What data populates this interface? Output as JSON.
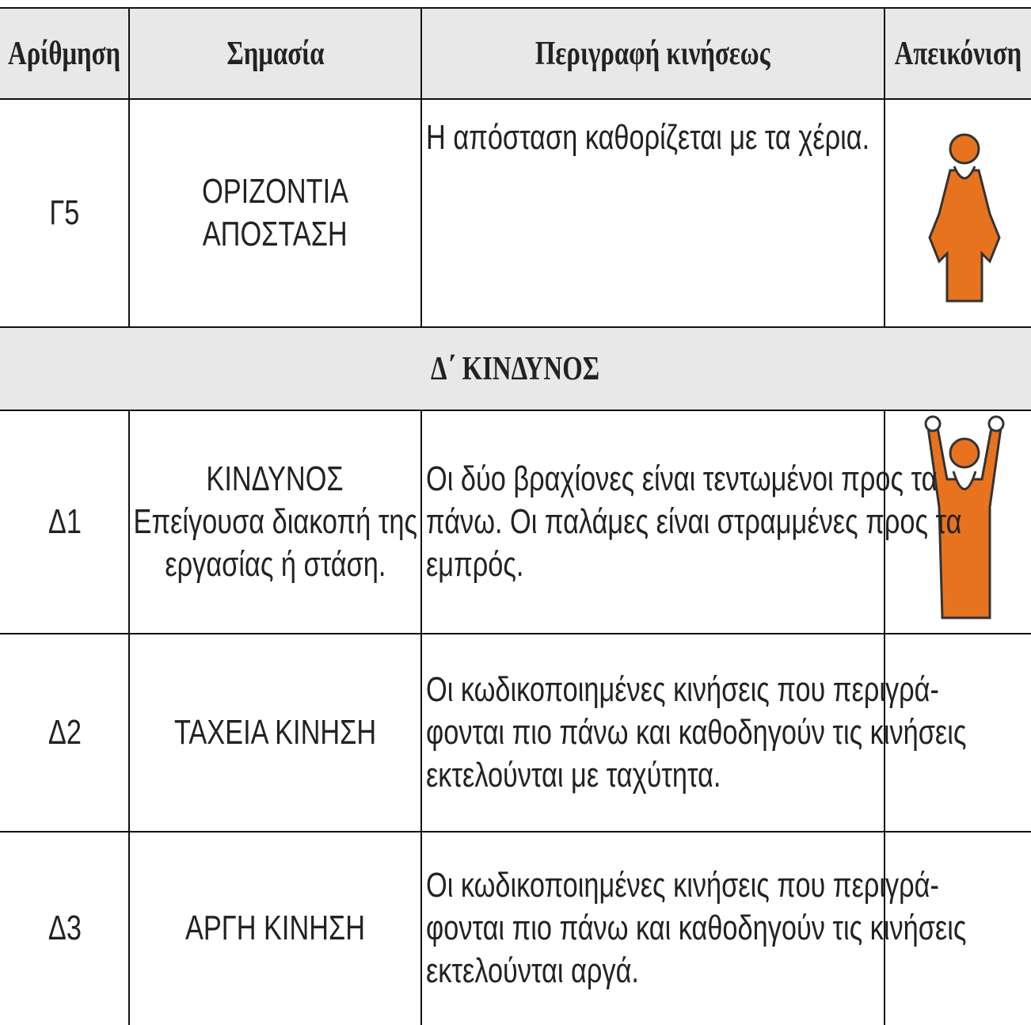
{
  "table": {
    "header": [
      "Αρίθμηση",
      "Σημασία",
      "Περιγραφή κινήσεως",
      "Απεικόνιση"
    ],
    "rows": [
      {
        "number": "Γ5",
        "meaning": [
          "ΟΡΙΖΟΝΤΙΑ",
          "ΑΠΟΣΤΑΣΗ"
        ],
        "description": [
          "Η απόσταση καθορίζεται με τα χέρια."
        ]
      },
      {
        "section": "Δ΄ ΚΙΝΔΥΝΟΣ"
      },
      {
        "number": "Δ1",
        "meaning": [
          "ΚΙΝΔΥΝΟΣ",
          "Επείγουσα διακοπή της",
          "εργασίας ή στάση."
        ],
        "description": [
          "Οι δύο βραχίονες είναι τεντωμένοι προς τα",
          "πάνω. Οι παλάμες είναι στραμμένες προς τα",
          "εμπρός."
        ]
      },
      {
        "number": "Δ2",
        "meaning": [
          "ΤΑΧΕΙΑ ΚΙΝΗΣΗ"
        ],
        "description": [
          "Οι κωδικοποιημένες κινήσεις που περιγρά-",
          "φονται πιο πάνω και καθοδηγούν τις κινήσεις",
          "εκτελούνται με ταχύτητα."
        ]
      },
      {
        "number": "Δ3",
        "meaning": [
          "ΑΡΓΗ ΚΙΝΗΣΗ"
        ],
        "description": [
          "Οι κωδικοποιημένες κινήσεις που περιγρά-",
          "φονται πιο πάνω και καθοδηγούν τις κινήσεις",
          "εκτελούνται αργά."
        ]
      }
    ]
  }
}
